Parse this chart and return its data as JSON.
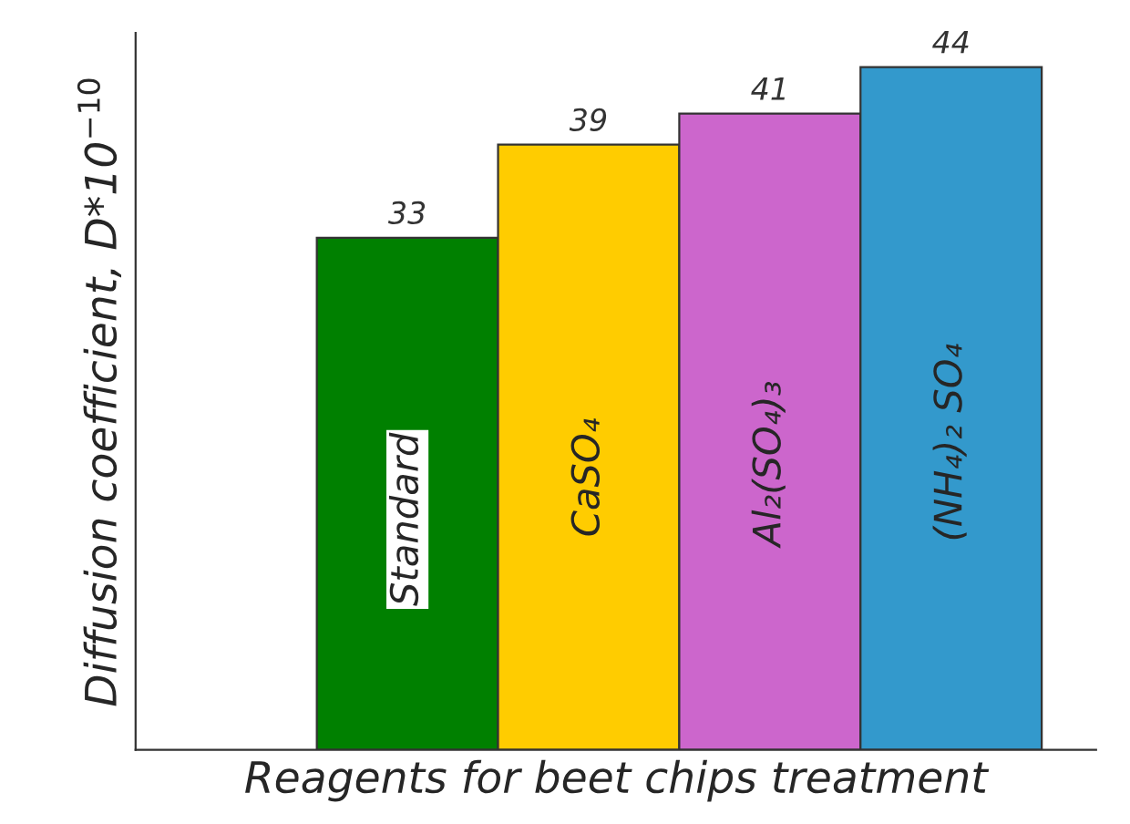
{
  "chart_data": {
    "type": "bar",
    "xlabel": "Reagents for beet chips treatment",
    "ylabel": "Diffusion coefficient, D*10$^{−10}$",
    "categories": [
      "Standard",
      "CaSO₄",
      "Al₂(SO₄)₃",
      "(NH₄)₂ SO₄"
    ],
    "values": [
      33,
      39,
      41,
      44
    ],
    "colors": [
      "#008000",
      "#ffcc00",
      "#cc66cc",
      "#3399cc"
    ],
    "tick_labels": false,
    "data_labels": true
  }
}
